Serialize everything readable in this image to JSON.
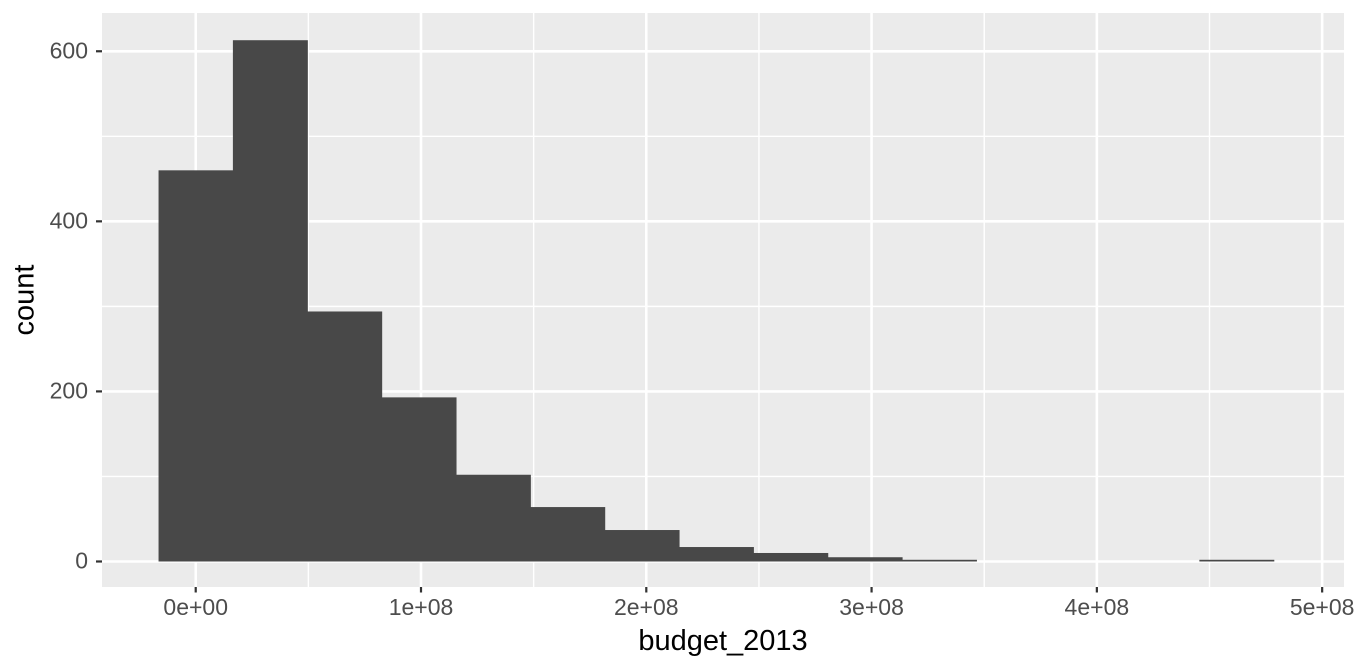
{
  "figure": {
    "x_axis_title": "budget_2013",
    "y_axis_title": "count"
  },
  "chart_data": {
    "type": "bar",
    "subtype": "histogram",
    "title": "",
    "xlabel": "budget_2013",
    "ylabel": "count",
    "bin_width": 33000000,
    "bin_centers": [
      0,
      33000000,
      66000000,
      99000000,
      132000000,
      165000000,
      198000000,
      231000000,
      264000000,
      297000000,
      330000000,
      363000000,
      396000000,
      429000000,
      462000000
    ],
    "counts": [
      460,
      613,
      294,
      193,
      102,
      64,
      37,
      17,
      10,
      5,
      2,
      0,
      0,
      0,
      2
    ],
    "xlim": [
      -41600000,
      509700000
    ],
    "ylim": [
      -30,
      645
    ],
    "x_ticks": [
      {
        "value": 0,
        "label": "0e+00"
      },
      {
        "value": 100000000,
        "label": "1e+08"
      },
      {
        "value": 200000000,
        "label": "2e+08"
      },
      {
        "value": 300000000,
        "label": "3e+08"
      },
      {
        "value": 400000000,
        "label": "4e+08"
      },
      {
        "value": 500000000,
        "label": "5e+08"
      }
    ],
    "y_ticks": [
      {
        "value": 0,
        "label": "0"
      },
      {
        "value": 200,
        "label": "200"
      },
      {
        "value": 400,
        "label": "400"
      },
      {
        "value": 600,
        "label": "600"
      }
    ],
    "x_minor_gridlines": [
      50000000,
      150000000,
      250000000,
      350000000,
      450000000
    ],
    "y_minor_gridlines": [
      100,
      300,
      500
    ],
    "grid": true,
    "legend": "none",
    "colors": {
      "bar_fill": "#484848",
      "panel_bg": "#EBEBEB",
      "gridline": "#FFFFFF",
      "tick_label": "#4D4D4D",
      "axis_title": "#000000",
      "tick_mark": "#333333",
      "outer_bg": "#FFFFFF"
    }
  }
}
